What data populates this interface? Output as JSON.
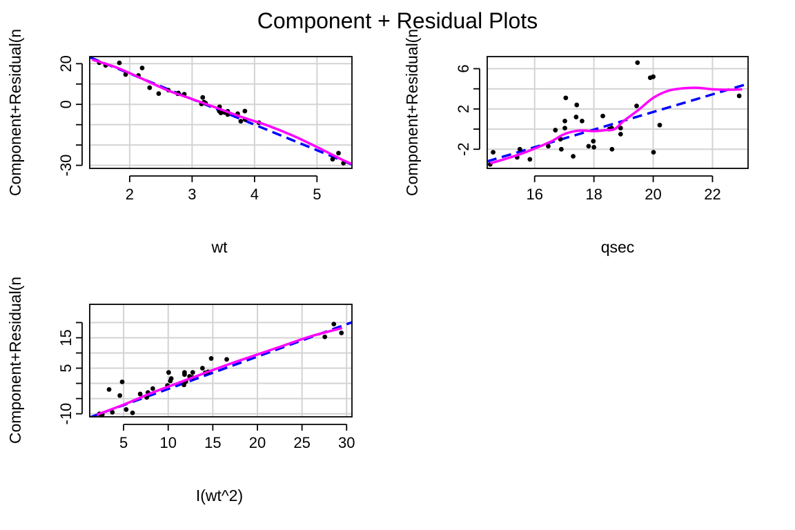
{
  "title": "Component + Residual Plots",
  "colors": {
    "fit": "#0000ff",
    "smooth": "#ff00ff",
    "points": "#000000",
    "grid": "#d3d3d3"
  },
  "chart_data": [
    {
      "type": "scatter",
      "id": "wt",
      "xlabel": "wt",
      "ylabel": "Component+Residual(n",
      "xlim": [
        1.36,
        5.56
      ],
      "ylim": [
        -31.5,
        23.5
      ],
      "xticks": [
        2,
        3,
        4,
        5
      ],
      "yticks": [
        -30,
        -20,
        -10,
        0,
        10,
        20
      ],
      "ytick_labels": [
        "-30",
        "",
        "",
        "0",
        "",
        "20"
      ],
      "grid": true,
      "points": [
        [
          1.513,
          20.5
        ],
        [
          1.615,
          19.2
        ],
        [
          1.835,
          20.4
        ],
        [
          1.935,
          14.7
        ],
        [
          2.14,
          14.2
        ],
        [
          2.2,
          17.9
        ],
        [
          2.32,
          8.2
        ],
        [
          2.465,
          5.3
        ],
        [
          2.62,
          7.0
        ],
        [
          2.77,
          5.2
        ],
        [
          2.78,
          5.6
        ],
        [
          2.875,
          5.0
        ],
        [
          3.15,
          0.2
        ],
        [
          3.17,
          3.4
        ],
        [
          3.19,
          1.1
        ],
        [
          3.215,
          0.6
        ],
        [
          3.435,
          -3.3
        ],
        [
          3.44,
          -1.2
        ],
        [
          3.44,
          -2.7
        ],
        [
          3.46,
          -4.2
        ],
        [
          3.52,
          -4.0
        ],
        [
          3.57,
          -3.4
        ],
        [
          3.57,
          -5.0
        ],
        [
          3.73,
          -4.6
        ],
        [
          3.78,
          -8.3
        ],
        [
          3.845,
          -3.3
        ],
        [
          3.85,
          -7.4
        ],
        [
          4.07,
          -9.0
        ],
        [
          5.25,
          -27.0
        ],
        [
          5.345,
          -24.0
        ],
        [
          5.424,
          -28.9
        ]
      ],
      "fit_line": [
        [
          1.36,
          23.2
        ],
        [
          5.56,
          -29.6
        ]
      ],
      "smooth_line": [
        [
          1.4,
          22.0
        ],
        [
          1.8,
          18.0
        ],
        [
          2.2,
          12.6
        ],
        [
          2.6,
          7.0
        ],
        [
          3.0,
          2.6
        ],
        [
          3.4,
          -1.8
        ],
        [
          3.8,
          -6.3
        ],
        [
          4.2,
          -10.3
        ],
        [
          4.6,
          -15.2
        ],
        [
          5.0,
          -21.0
        ],
        [
          5.4,
          -27.2
        ],
        [
          5.56,
          -29.3
        ]
      ]
    },
    {
      "type": "scatter",
      "id": "qsec",
      "xlabel": "qsec",
      "ylabel": "Component+Residual(n",
      "xlim": [
        14.4,
        23.2
      ],
      "ylim": [
        -3.9,
        7.2
      ],
      "xticks": [
        16,
        18,
        20,
        22
      ],
      "yticks": [
        -2,
        0,
        2,
        4,
        6
      ],
      "ytick_labels": [
        "-2",
        "",
        "2",
        "",
        "6"
      ],
      "grid": true,
      "points": [
        [
          14.5,
          -3.5
        ],
        [
          14.6,
          -2.3
        ],
        [
          15.41,
          -2.8
        ],
        [
          15.5,
          -2.0
        ],
        [
          15.84,
          -3.0
        ],
        [
          16.46,
          -1.7
        ],
        [
          16.7,
          -0.1
        ],
        [
          16.87,
          -1.0
        ],
        [
          16.9,
          -2.0
        ],
        [
          17.02,
          0.8
        ],
        [
          17.02,
          0.1
        ],
        [
          17.05,
          3.1
        ],
        [
          17.3,
          -2.7
        ],
        [
          17.4,
          1.2
        ],
        [
          17.42,
          2.4
        ],
        [
          17.6,
          0.8
        ],
        [
          17.82,
          -1.7
        ],
        [
          17.98,
          -1.2
        ],
        [
          18.0,
          -1.8
        ],
        [
          18.3,
          1.3
        ],
        [
          18.52,
          0.0
        ],
        [
          18.6,
          0.1
        ],
        [
          18.61,
          -2.0
        ],
        [
          18.9,
          0.1
        ],
        [
          18.9,
          -0.5
        ],
        [
          19.44,
          2.3
        ],
        [
          19.47,
          6.6
        ],
        [
          19.9,
          5.1
        ],
        [
          20.0,
          5.2
        ],
        [
          20.01,
          -2.3
        ],
        [
          20.22,
          0.4
        ],
        [
          22.9,
          3.3
        ]
      ],
      "fit_line": [
        [
          14.4,
          -3.2
        ],
        [
          23.2,
          4.5
        ]
      ],
      "smooth_line": [
        [
          14.5,
          -3.4
        ],
        [
          15.5,
          -2.5
        ],
        [
          16.5,
          -1.3
        ],
        [
          17.0,
          -0.5
        ],
        [
          17.5,
          -0.15
        ],
        [
          18.0,
          -0.2
        ],
        [
          18.4,
          -0.1
        ],
        [
          18.7,
          0.0
        ],
        [
          19.0,
          0.8
        ],
        [
          19.5,
          1.9
        ],
        [
          20.0,
          3.1
        ],
        [
          20.5,
          3.8
        ],
        [
          21.0,
          4.05
        ],
        [
          21.5,
          4.1
        ],
        [
          22.0,
          3.95
        ],
        [
          22.5,
          3.9
        ],
        [
          23.0,
          3.95
        ]
      ]
    },
    {
      "type": "scatter",
      "id": "wt2",
      "xlabel": "I(wt^2)",
      "ylabel": "Component+Residual(n",
      "xlim": [
        1.2,
        30.6
      ],
      "ylim": [
        -11.0,
        26.0
      ],
      "xticks": [
        5,
        10,
        15,
        20,
        25,
        30
      ],
      "yticks": [
        -10,
        -5,
        0,
        5,
        10,
        15,
        20
      ],
      "ytick_labels": [
        "-10",
        "",
        "",
        "5",
        "",
        "15",
        ""
      ],
      "grid": true,
      "points": [
        [
          2.29,
          -10.0
        ],
        [
          2.61,
          -10.3
        ],
        [
          3.37,
          -2.0
        ],
        [
          3.74,
          -9.5
        ],
        [
          4.58,
          -4.0
        ],
        [
          4.84,
          0.5
        ],
        [
          5.29,
          -8.6
        ],
        [
          6.0,
          -9.7
        ],
        [
          6.86,
          -3.5
        ],
        [
          7.59,
          -4.6
        ],
        [
          7.73,
          -3.0
        ],
        [
          8.27,
          -1.7
        ],
        [
          9.92,
          -0.7
        ],
        [
          10.05,
          3.6
        ],
        [
          10.24,
          0.8
        ],
        [
          10.34,
          1.6
        ],
        [
          11.77,
          -0.5
        ],
        [
          11.83,
          2.9
        ],
        [
          11.83,
          3.6
        ],
        [
          11.98,
          0.6
        ],
        [
          12.39,
          2.3
        ],
        [
          12.69,
          2.0
        ],
        [
          12.75,
          3.6
        ],
        [
          13.84,
          5.0
        ],
        [
          14.14,
          3.5
        ],
        [
          14.48,
          3.8
        ],
        [
          14.82,
          8.2
        ],
        [
          16.56,
          7.9
        ],
        [
          27.56,
          15.3
        ],
        [
          28.57,
          19.5
        ],
        [
          29.42,
          16.6
        ]
      ],
      "fit_line": [
        [
          1.2,
          -11.2
        ],
        [
          30.6,
          20.1
        ]
      ],
      "smooth_line": [
        [
          2.0,
          -10.3
        ],
        [
          5.0,
          -7.0
        ],
        [
          8.0,
          -3.3
        ],
        [
          11.0,
          0.0
        ],
        [
          14.0,
          3.3
        ],
        [
          17.0,
          6.5
        ],
        [
          20.0,
          9.5
        ],
        [
          23.0,
          12.5
        ],
        [
          26.0,
          15.5
        ],
        [
          29.5,
          18.2
        ]
      ]
    }
  ]
}
